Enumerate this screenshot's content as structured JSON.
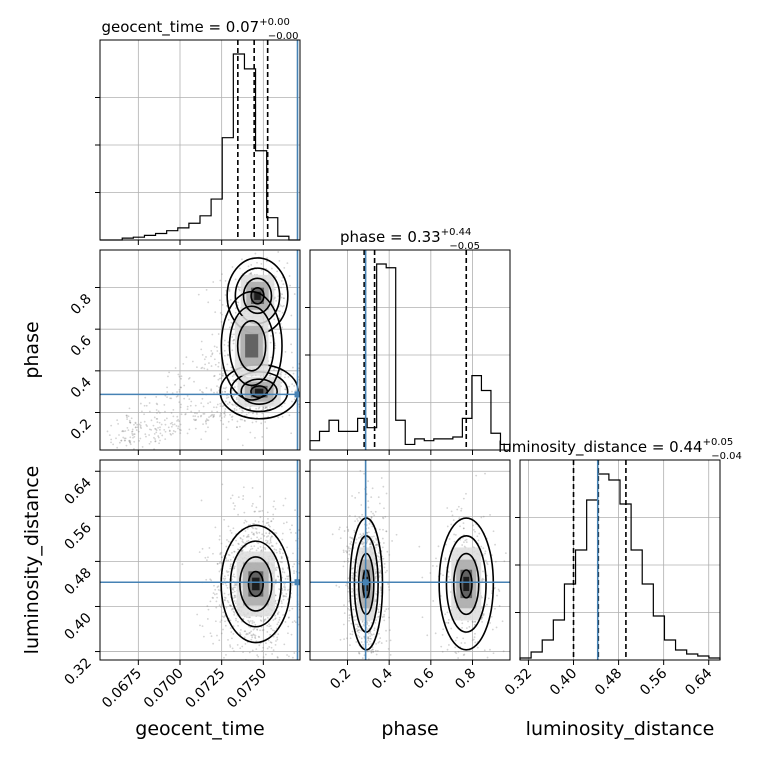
{
  "chart_data": {
    "type": "corner",
    "parameters": [
      {
        "name": "geocent_time",
        "median": 0.07,
        "plus": "0.00",
        "minus": "0.00",
        "title_main": "geocent_time = 0.07",
        "sup": "+0.00",
        "sub": "−0.00",
        "range": [
          0.0652,
          0.0772
        ],
        "ticks": [
          0.0675,
          0.07,
          0.0725,
          0.075
        ],
        "tick_labels": [
          "0.0675",
          "0.0700",
          "0.0725",
          "0.0750"
        ],
        "quantiles": [
          0.07347,
          0.07445,
          0.07526
        ],
        "truth": 0.07705,
        "hist": [
          0,
          0,
          1,
          1.5,
          2.5,
          3.5,
          5,
          6.5,
          9,
          13,
          22,
          55,
          100,
          92,
          48,
          12,
          2,
          0
        ]
      },
      {
        "name": "phase",
        "median": 0.33,
        "plus": "0.44",
        "minus": "0.05",
        "title_main": "phase = 0.33",
        "sup": "+0.44",
        "sub": "−0.05",
        "range": [
          0.02,
          0.98
        ],
        "ticks": [
          0.2,
          0.4,
          0.6,
          0.8
        ],
        "tick_labels": [
          "0.2",
          "0.4",
          "0.6",
          "0.8"
        ],
        "quantiles": [
          0.28,
          0.33,
          0.77
        ],
        "truth": 0.287,
        "hist": [
          5,
          10,
          16,
          10,
          10,
          17,
          12,
          100,
          98,
          16,
          3,
          6,
          5,
          6,
          6,
          7,
          17,
          40,
          32,
          9,
          3
        ]
      },
      {
        "name": "luminosity_distance",
        "median": 0.44,
        "plus": "0.05",
        "minus": "0.04",
        "title_main": "luminosity_distance = 0.44",
        "sup": "+0.05",
        "sub": "−0.04",
        "range": [
          0.305,
          0.66
        ],
        "ticks": [
          0.32,
          0.4,
          0.48,
          0.56,
          0.64
        ],
        "tick_labels": [
          "0.32",
          "0.40",
          "0.48",
          "0.56",
          "0.64"
        ],
        "quantiles": [
          0.4,
          0.444,
          0.493
        ],
        "truth": 0.443,
        "hist": [
          1,
          4,
          10,
          20,
          38,
          55,
          80,
          93,
          90,
          78,
          55,
          38,
          22,
          10,
          5,
          3,
          2,
          1
        ]
      }
    ],
    "scatter_panels": [
      {
        "x": "geocent_time",
        "y": "phase",
        "density_peaks": [
          {
            "x": 0.07475,
            "y": 0.3,
            "sx": 0.0009,
            "sy": 0.05,
            "w": 1.0
          },
          {
            "x": 0.07465,
            "y": 0.76,
            "sx": 0.0007,
            "sy": 0.07,
            "w": 0.55
          },
          {
            "x": 0.0743,
            "y": 0.52,
            "sx": 0.0007,
            "sy": 0.1,
            "w": 0.25
          }
        ]
      },
      {
        "x": "geocent_time",
        "y": "luminosity_distance",
        "density_peaks": [
          {
            "x": 0.07455,
            "y": 0.44,
            "sx": 0.0008,
            "sy": 0.04,
            "w": 1.0
          }
        ]
      },
      {
        "x": "phase",
        "y": "luminosity_distance",
        "density_peaks": [
          {
            "x": 0.29,
            "y": 0.44,
            "sx": 0.03,
            "sy": 0.045,
            "w": 1.0
          },
          {
            "x": 0.77,
            "y": 0.44,
            "sx": 0.05,
            "sy": 0.045,
            "w": 0.45
          }
        ]
      }
    ],
    "colors": {
      "truth": "#4682b4",
      "contour": "#000000",
      "grid": "#b0b0b0",
      "points": "#808080"
    }
  }
}
